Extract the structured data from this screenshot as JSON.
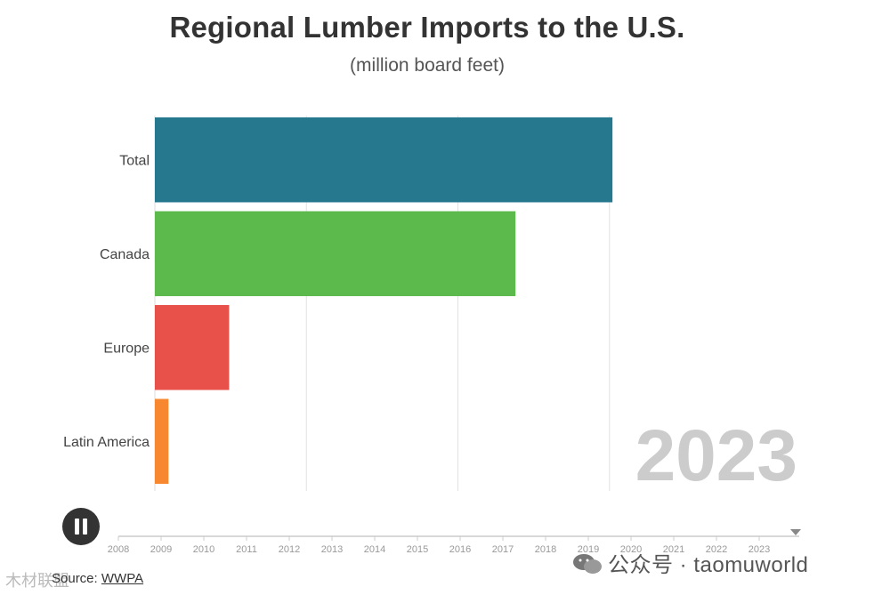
{
  "chart_data": {
    "type": "bar",
    "orientation": "horizontal",
    "title": "Regional Lumber Imports to the U.S.",
    "subtitle": "(million board feet)",
    "categories": [
      "Total",
      "Canada",
      "Europe",
      "Latin America"
    ],
    "values": [
      15100,
      11900,
      2450,
      450
    ],
    "colors": [
      "#26788f",
      "#5cb94c",
      "#e8504a",
      "#f7882f"
    ],
    "xlim": [
      0,
      20000
    ],
    "gridlines": [
      5000,
      10000,
      15000
    ],
    "current_year": "2023"
  },
  "timeline": {
    "years": [
      "2008",
      "2009",
      "2010",
      "2011",
      "2012",
      "2013",
      "2014",
      "2015",
      "2016",
      "2017",
      "2018",
      "2019",
      "2020",
      "2021",
      "2022",
      "2023"
    ],
    "current": "2023"
  },
  "controls": {
    "pause_label": "Pause"
  },
  "source": {
    "prefix": "Source: ",
    "link_text": "WWPA"
  },
  "watermark": {
    "text": "公众号 · taomuworld",
    "left_text": "木材联盟"
  }
}
